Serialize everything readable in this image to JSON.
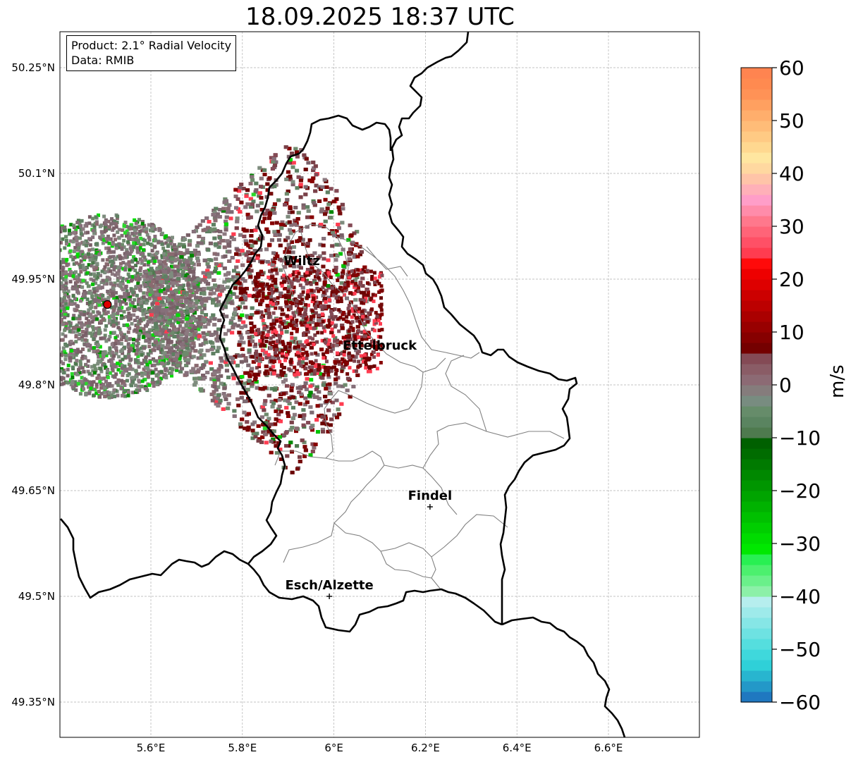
{
  "title": "18.09.2025 18:37 UTC",
  "info": {
    "product": "Product: 2.1° Radial Velocity",
    "data": "Data: RMIB"
  },
  "map": {
    "lon_range": [
      5.4,
      6.8
    ],
    "lat_range": [
      49.3,
      50.3
    ],
    "lon_ticks": [
      {
        "value": 5.6,
        "label": "5.6°E"
      },
      {
        "value": 5.8,
        "label": "5.8°E"
      },
      {
        "value": 6.0,
        "label": "6°E"
      },
      {
        "value": 6.2,
        "label": "6.2°E"
      },
      {
        "value": 6.4,
        "label": "6.4°E"
      },
      {
        "value": 6.6,
        "label": "6.6°E"
      }
    ],
    "lat_ticks": [
      {
        "value": 50.25,
        "label": "50.25°N"
      },
      {
        "value": 50.1,
        "label": "50.1°N"
      },
      {
        "value": 49.95,
        "label": "49.95°N"
      },
      {
        "value": 49.8,
        "label": "49.8°N"
      },
      {
        "value": 49.65,
        "label": "49.65°N"
      },
      {
        "value": 49.5,
        "label": "49.5°N"
      },
      {
        "value": 49.35,
        "label": "49.35°N"
      }
    ],
    "radar_site": {
      "lon": 5.505,
      "lat": 49.914
    },
    "cities": [
      {
        "name": "Wiltz",
        "lon": 5.93,
        "lat": 49.97,
        "marker": false
      },
      {
        "name": "Ettelbruck",
        "lon": 6.1,
        "lat": 49.85,
        "marker": false
      },
      {
        "name": "Findel",
        "lon": 6.21,
        "lat": 49.627,
        "marker": true
      },
      {
        "name": "Esch/Alzette",
        "lon": 5.99,
        "lat": 49.5,
        "marker": true
      }
    ]
  },
  "colorbar": {
    "label": "m/s",
    "min": -60,
    "max": 60,
    "ticks": [
      {
        "value": 60,
        "label": "60"
      },
      {
        "value": 50,
        "label": "50"
      },
      {
        "value": 40,
        "label": "40"
      },
      {
        "value": 30,
        "label": "30"
      },
      {
        "value": 20,
        "label": "20"
      },
      {
        "value": 10,
        "label": "10"
      },
      {
        "value": 0,
        "label": "0"
      },
      {
        "value": -10,
        "label": "−10"
      },
      {
        "value": -20,
        "label": "−20"
      },
      {
        "value": -30,
        "label": "−30"
      },
      {
        "value": -40,
        "label": "−40"
      },
      {
        "value": -50,
        "label": "−50"
      },
      {
        "value": -60,
        "label": "−60"
      }
    ],
    "colors": [
      "#1f78c0",
      "#2398c8",
      "#28b5cf",
      "#2fd0d8",
      "#3fd8dc",
      "#55dede",
      "#6ee2e2",
      "#86e6e6",
      "#9eeaea",
      "#b6eeee",
      "#8cf0a8",
      "#6af08a",
      "#4cf06e",
      "#28f052",
      "#00e800",
      "#00dc00",
      "#00ce00",
      "#00c000",
      "#00b200",
      "#00a400",
      "#009600",
      "#008800",
      "#007a00",
      "#006c00",
      "#006000",
      "#4e7a4e",
      "#5a8460",
      "#668c6a",
      "#788c80",
      "#857c7c",
      "#8c6a74",
      "#8a5c66",
      "#844a55",
      "#740000",
      "#860000",
      "#980000",
      "#aa0000",
      "#bc0000",
      "#cc0000",
      "#de0000",
      "#ee0000",
      "#ff0a0a",
      "#ff3c50",
      "#ff5066",
      "#ff6478",
      "#ff788c",
      "#ff8caa",
      "#ff9ec8",
      "#ffb0b8",
      "#ffc4a8",
      "#ffd8a0",
      "#ffe6a0",
      "#ffd890",
      "#ffca84",
      "#ffbc78",
      "#ffae6c",
      "#ffa060",
      "#ff9256",
      "#ff8a50",
      "#ff8450"
    ]
  }
}
